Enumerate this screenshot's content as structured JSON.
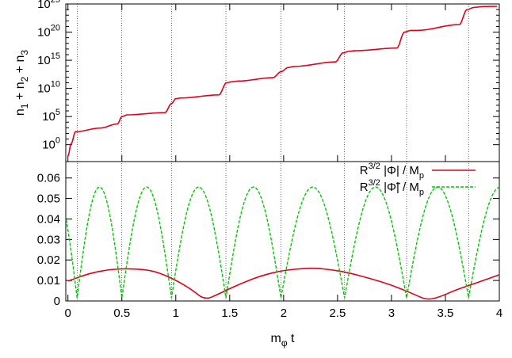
{
  "chart_data": [
    {
      "type": "line",
      "panel": "top",
      "ylabel": "n₁ + n₂ + n₃",
      "yscale": "log",
      "ylim": [
        0.001,
        1e+25
      ],
      "xlim": [
        -0.02,
        4.0
      ],
      "y_tick_labels": [
        "10^0",
        "10^5",
        "10^10",
        "10^15",
        "10^20",
        "10^25"
      ],
      "grid": false,
      "series": [
        {
          "color": "#e0001b",
          "style": "solid",
          "x": [
            0.0,
            0.03,
            0.07,
            0.3,
            0.46,
            0.5,
            0.55,
            0.9,
            0.96,
            1.0,
            1.05,
            1.4,
            1.47,
            1.52,
            1.58,
            1.9,
            1.98,
            2.04,
            2.1,
            2.48,
            2.55,
            2.61,
            2.67,
            3.05,
            3.12,
            3.18,
            3.24,
            3.63,
            3.7,
            3.77,
            3.85,
            3.98
          ],
          "y": [
            0.01,
            1.5,
            200,
            900,
            5000,
            100000.0,
            200000.0,
            500000.0,
            20000000.0,
            150000000.0,
            200000000.0,
            700000000.0,
            100000000000.0,
            150000000000.0,
            200000000000.0,
            800000000000.0,
            10000000000000.0,
            50000000000000.0,
            80000000000000.0,
            500000000000000.0,
            2e+16,
            4e+16,
            5e+16,
            1.5e+17,
            1e+20,
            2e+20,
            2e+20,
            2.2e+21,
            1e+24,
            2.5e+24,
            3.5e+24,
            3.8e+24
          ]
        }
      ],
      "vlines_x": [
        0.085,
        0.5,
        0.96,
        1.465,
        1.975,
        2.565,
        3.14,
        3.715
      ]
    },
    {
      "type": "line",
      "panel": "bottom",
      "xlabel": "mφ t",
      "xlim": [
        -0.02,
        4.0
      ],
      "ylim": [
        0,
        0.068
      ],
      "x_ticks": [
        0,
        0.5,
        1,
        1.5,
        2,
        2.5,
        3,
        3.5,
        4
      ],
      "x_tick_labels": [
        "0",
        "0.5",
        "1",
        "1.5",
        "2",
        "2.5",
        "3",
        "3.5",
        "4"
      ],
      "y_ticks": [
        0,
        0.01,
        0.02,
        0.03,
        0.04,
        0.05,
        0.06
      ],
      "y_tick_labels": [
        "0",
        "0.01",
        "0.02",
        "0.03",
        "0.04",
        "0.05",
        "0.06"
      ],
      "legend_position": "top-right",
      "grid": false,
      "series": [
        {
          "name": "R3/2 |Φ| / Mp",
          "color": "#e0001b",
          "style": "solid",
          "x": [
            0.0,
            0.2,
            0.4,
            0.6,
            0.8,
            1.0,
            1.15,
            1.27,
            1.4,
            1.6,
            1.8,
            2.0,
            2.2,
            2.3,
            2.45,
            2.6,
            2.8,
            3.0,
            3.2,
            3.33,
            3.45,
            3.6,
            3.8,
            4.0
          ],
          "y": [
            0.0097,
            0.0135,
            0.0155,
            0.0158,
            0.0148,
            0.0102,
            0.0055,
            0.0004,
            0.0035,
            0.0085,
            0.0125,
            0.015,
            0.0159,
            0.016,
            0.0152,
            0.0138,
            0.011,
            0.0078,
            0.0035,
            0.0004,
            0.002,
            0.0055,
            0.009,
            0.0128
          ]
        },
        {
          "name": "R3/2 |Φ̃| / Mp",
          "color": "#00c800",
          "style": "dashed",
          "zeros_x": [
            -0.32,
            0.085,
            0.5,
            0.96,
            1.465,
            1.975,
            2.565,
            3.14,
            3.715,
            4.3
          ],
          "peak_value": 0.0556,
          "note_zero_floor": 0.0015
        }
      ]
    }
  ]
}
